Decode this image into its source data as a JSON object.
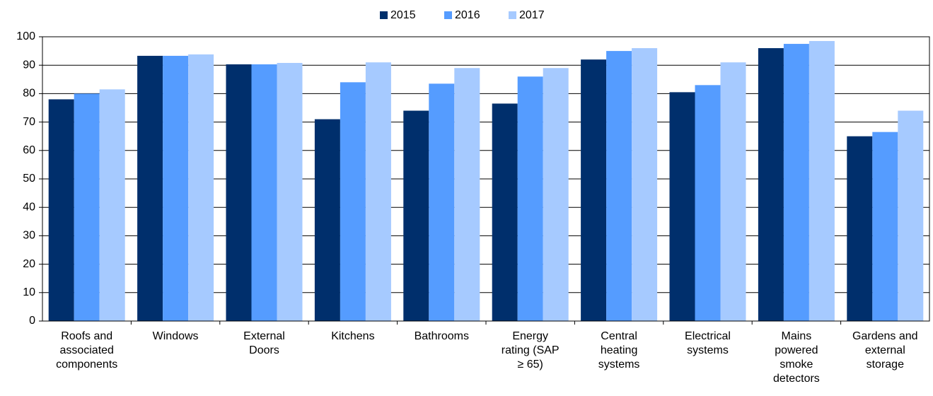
{
  "chart_data": {
    "type": "bar",
    "categories": [
      "Roofs and associated components",
      "Windows",
      "External Doors",
      "Kitchens",
      "Bathrooms",
      "Energy rating (SAP ≥ 65)",
      "Central heating systems",
      "Electrical systems",
      "Mains powered smoke detectors",
      "Gardens and external storage"
    ],
    "series": [
      {
        "name": "2015",
        "color": "#002f6c",
        "values": [
          78,
          93.3,
          90.3,
          71,
          74,
          76.5,
          92,
          80.5,
          96,
          65
        ]
      },
      {
        "name": "2016",
        "color": "#559cff",
        "values": [
          80,
          93.3,
          90.3,
          84,
          83.5,
          86,
          95,
          83,
          97.5,
          66.5
        ]
      },
      {
        "name": "2017",
        "color": "#a6caff",
        "values": [
          81.5,
          93.8,
          90.8,
          91,
          89,
          89,
          96,
          91,
          98.5,
          74
        ]
      }
    ],
    "ylim": [
      0,
      100
    ],
    "yticks": [
      0,
      10,
      20,
      30,
      40,
      50,
      60,
      70,
      80,
      90,
      100
    ],
    "grid": true,
    "legend": "top"
  }
}
